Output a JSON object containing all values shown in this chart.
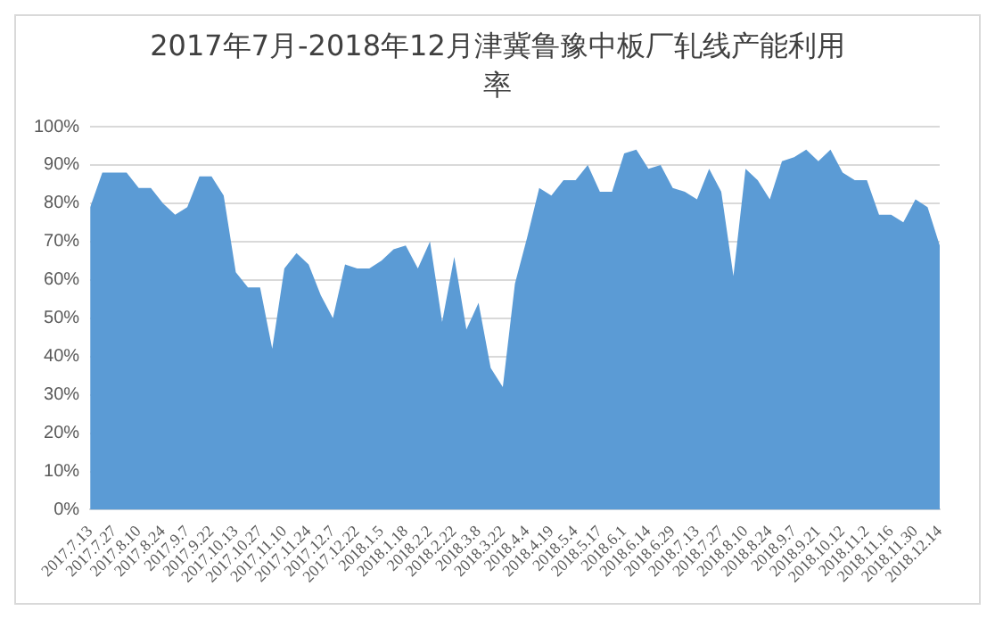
{
  "chart_data": {
    "type": "area",
    "title": "2017年7月-2018年12月津冀鲁豫中板厂轧线产能利用率",
    "categories": [
      "2017.7.13",
      null,
      "2017.7.27",
      null,
      "2017.8.10",
      null,
      "2017.8.24",
      null,
      "2017.9.7",
      null,
      "2017.9.22",
      null,
      "2017.10.13",
      null,
      "2017.10.27",
      null,
      "2017.11.10",
      null,
      "2017.11.24",
      null,
      "2017.12.7",
      null,
      "2017.12.22",
      null,
      "2018.1.5",
      null,
      "2018.1.18",
      null,
      "2018.2.2",
      null,
      "2018.2.22",
      null,
      "2018.3.8",
      null,
      "2018.3.22",
      null,
      "2018.4.4",
      null,
      "2018.4.19",
      null,
      "2018.5.4",
      null,
      "2018.5.17",
      null,
      "2018.6.1",
      null,
      "2018.6.14",
      null,
      "2018.6.29",
      null,
      "2018.7.13",
      null,
      "2018.7.27",
      null,
      "2018.8.10",
      null,
      "2018.8.24",
      null,
      "2018.9.7",
      null,
      "2018.9.21",
      null,
      "2018.10.12",
      null,
      "2018.11.2",
      null,
      "2018.11.16",
      null,
      "2018.11.30",
      null,
      "2018.12.14"
    ],
    "series": [
      {
        "color": "#5b9bd5",
        "values": [
          79,
          88,
          88,
          88,
          84,
          84,
          80,
          77,
          79,
          87,
          87,
          82,
          62,
          58,
          58,
          42,
          63,
          67,
          64,
          56,
          50,
          64,
          63,
          63,
          65,
          68,
          69,
          63,
          70,
          49,
          66,
          47,
          54,
          37,
          32,
          59,
          71,
          84,
          82,
          86,
          86,
          90,
          83,
          83,
          93,
          94,
          89,
          90,
          84,
          83,
          81,
          89,
          83,
          61,
          89,
          86,
          81,
          91,
          92,
          94,
          91,
          94,
          88,
          86,
          86,
          77,
          77,
          75,
          81,
          79,
          69
        ]
      }
    ],
    "ylim": [
      0,
      100
    ],
    "yticks": [
      {
        "value": 0,
        "label": "0%"
      },
      {
        "value": 10,
        "label": "10%"
      },
      {
        "value": 20,
        "label": "20%"
      },
      {
        "value": 30,
        "label": "30%"
      },
      {
        "value": 40,
        "label": "40%"
      },
      {
        "value": 50,
        "label": "50%"
      },
      {
        "value": 60,
        "label": "60%"
      },
      {
        "value": 70,
        "label": "70%"
      },
      {
        "value": 80,
        "label": "80%"
      },
      {
        "value": 90,
        "label": "90%"
      },
      {
        "value": 100,
        "label": "100%"
      }
    ],
    "grid": "y",
    "legend": false,
    "marker": "none"
  }
}
